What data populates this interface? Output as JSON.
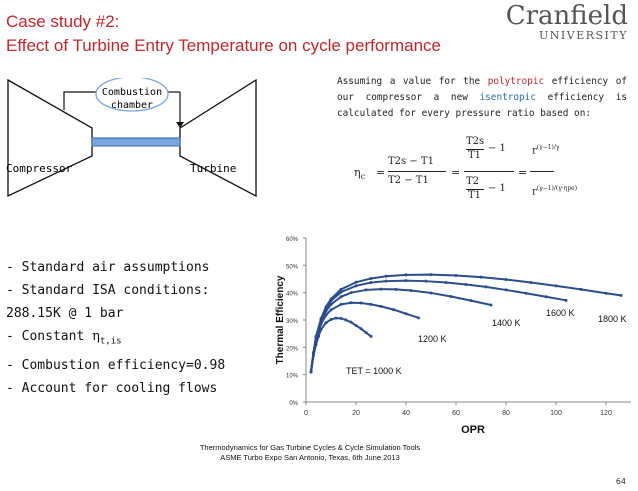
{
  "title": {
    "line1": "Case study #2:",
    "line2": "Effect of Turbine Entry Temperature on cycle performance"
  },
  "logo": {
    "name": "Cranfield",
    "sub": "UNIVERSITY"
  },
  "schematic": {
    "combustor": "Combustion chamber",
    "compressor": "Compressor",
    "turbine": "Turbine"
  },
  "assumption": {
    "p1": "Assuming a value for the",
    "kw1": "polytropic",
    "p2": "efficiency of our compressor a new",
    "kw2": "isentropic",
    "p3": "efficiency is calculated for every pressure ratio based on:"
  },
  "formula": {
    "lhs": "η",
    "lhs_sub": "c",
    "t2s": "T2s",
    "t1": "T1",
    "t2": "T2",
    "minus1": "− 1",
    "eq": "=",
    "r": "r",
    "gamma_exp": "(γ−1)/γ",
    "gamma_exp_pe": "(γ−1)/(γ·ηpe)"
  },
  "bullets": [
    "- Standard air assumptions",
    "- Standard ISA conditions:",
    "288.15K @ 1 bar",
    "- Constant ",
    "- Combustion efficiency=0.98",
    "- Account for cooling flows"
  ],
  "bullet_symbol": {
    "sym": "η",
    "sub": "t,is"
  },
  "chart_data": {
    "type": "line",
    "xlabel": "OPR",
    "ylabel": "Thermal Efficiency",
    "xlim": [
      0,
      130
    ],
    "ylim": [
      0,
      0.6
    ],
    "xticks": [
      "0",
      "20",
      "40",
      "60",
      "80",
      "100",
      "120"
    ],
    "yticks": [
      "0%",
      "10%",
      "20%",
      "30%",
      "40%",
      "50%",
      "60%"
    ],
    "series": [
      {
        "name": "TET = 1000 K",
        "color": "#2b4d8a",
        "x": [
          2,
          3,
          4,
          5,
          6,
          8,
          10,
          12,
          14,
          16,
          18,
          20,
          22,
          24,
          26
        ],
        "y": [
          0.11,
          0.17,
          0.21,
          0.24,
          0.265,
          0.29,
          0.302,
          0.307,
          0.306,
          0.3,
          0.292,
          0.28,
          0.268,
          0.254,
          0.24
        ]
      },
      {
        "name": "1200 K",
        "color": "#2b4d8a",
        "x": [
          2,
          3,
          4,
          6,
          8,
          10,
          14,
          18,
          22,
          26,
          30,
          35,
          40,
          45
        ],
        "y": [
          0.11,
          0.18,
          0.225,
          0.285,
          0.318,
          0.337,
          0.357,
          0.363,
          0.362,
          0.357,
          0.35,
          0.338,
          0.323,
          0.308
        ]
      },
      {
        "name": "1400 K",
        "color": "#2b4d8a",
        "x": [
          2,
          3,
          4,
          6,
          8,
          10,
          14,
          18,
          24,
          30,
          36,
          42,
          50,
          58,
          66,
          74
        ],
        "y": [
          0.11,
          0.18,
          0.23,
          0.295,
          0.333,
          0.357,
          0.385,
          0.4,
          0.41,
          0.413,
          0.412,
          0.408,
          0.399,
          0.386,
          0.371,
          0.355
        ]
      },
      {
        "name": "1600 K",
        "color": "#2b4d8a",
        "x": [
          2,
          3,
          4,
          6,
          8,
          10,
          14,
          20,
          26,
          32,
          40,
          48,
          56,
          64,
          72,
          80,
          88,
          96,
          104
        ],
        "y": [
          0.11,
          0.18,
          0.235,
          0.3,
          0.342,
          0.37,
          0.402,
          0.425,
          0.437,
          0.442,
          0.444,
          0.442,
          0.437,
          0.43,
          0.421,
          0.41,
          0.398,
          0.385,
          0.372
        ]
      },
      {
        "name": "1800 K",
        "color": "#2b4d8a",
        "x": [
          2,
          3,
          4,
          6,
          8,
          10,
          14,
          20,
          26,
          32,
          40,
          50,
          60,
          70,
          80,
          90,
          100,
          110,
          120,
          126
        ],
        "y": [
          0.11,
          0.18,
          0.24,
          0.305,
          0.348,
          0.377,
          0.412,
          0.438,
          0.452,
          0.46,
          0.465,
          0.466,
          0.463,
          0.457,
          0.448,
          0.437,
          0.425,
          0.412,
          0.398,
          0.39
        ]
      }
    ],
    "annotations": [
      "TET = 1000 K",
      "1200 K",
      "1400 K",
      "1600 K",
      "1800 K"
    ],
    "grid": false,
    "legend": "none"
  },
  "footer": {
    "line1": "Thermodynamics for Gas Turbine Cycles & Cycle Simulation Tools",
    "line2": "ASME Turbo Expo San Antonio, Texas, 6th June 2013"
  },
  "page_number": "64"
}
